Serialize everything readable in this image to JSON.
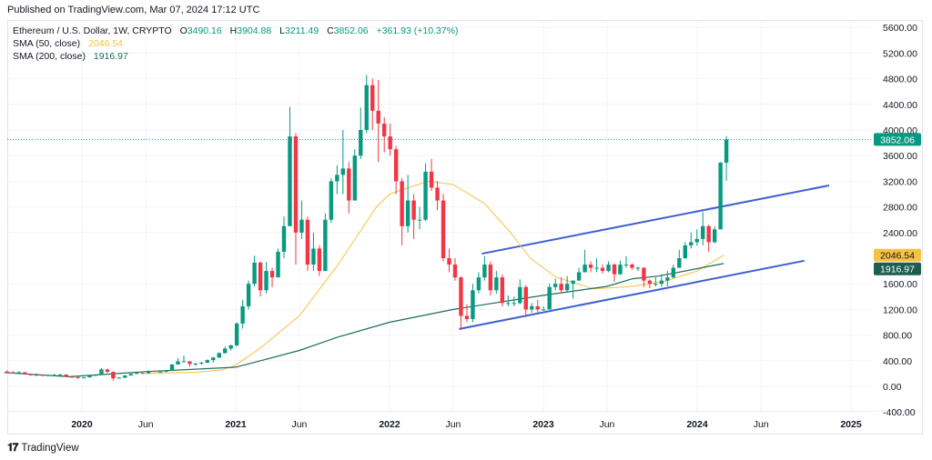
{
  "published": "Published on TradingView.com, Mar 07, 2024 17:12 UTC",
  "legend": {
    "symbol": "Ethereum / U.S. Dollar, 1W, CRYPTO",
    "open_label": "O",
    "open": "3490.16",
    "high_label": "H",
    "high": "3904.88",
    "low_label": "L",
    "low": "3211.49",
    "close_label": "C",
    "close": "3852.06",
    "change": "+361.93 (+10.37%)",
    "sma50_label": "SMA (50, close)",
    "sma50_value": "2046.54",
    "sma200_label": "SMA (200, close)",
    "sma200_value": "1916.97"
  },
  "logo": {
    "text": "TradingView"
  },
  "colors": {
    "up": "#089981",
    "down": "#f23645",
    "sma50": "#f5c242",
    "sma200": "#1e6b5a",
    "channel": "#3d5fd1",
    "grid": "#f0f3fa",
    "last_price": "#089981"
  },
  "chart_data": {
    "type": "candlestick",
    "title": "Ethereum / U.S. Dollar, 1W, CRYPTO",
    "ylim": [
      -400,
      5600
    ],
    "xlim": [
      "2019-07-01",
      "2025-03-10"
    ],
    "grid": true,
    "y_ticks": [
      "5600.00",
      "5200.00",
      "4800.00",
      "4400.00",
      "4000.00",
      "3600.00",
      "3200.00",
      "2800.00",
      "2400.00",
      "1600.00",
      "1200.00",
      "800.00",
      "400.00",
      "0.00",
      "-400.00"
    ],
    "x_ticks": [
      {
        "date": "2020-01-01",
        "label": "2020",
        "bold": true
      },
      {
        "date": "2020-06-01",
        "label": "Jun",
        "bold": false
      },
      {
        "date": "2021-01-01",
        "label": "2021",
        "bold": true
      },
      {
        "date": "2021-06-01",
        "label": "Jun",
        "bold": false
      },
      {
        "date": "2022-01-01",
        "label": "2022",
        "bold": true
      },
      {
        "date": "2022-06-01",
        "label": "Jun",
        "bold": false
      },
      {
        "date": "2023-01-01",
        "label": "2023",
        "bold": true
      },
      {
        "date": "2023-06-01",
        "label": "Jun",
        "bold": false
      },
      {
        "date": "2024-01-01",
        "label": "2024",
        "bold": true
      },
      {
        "date": "2024-06-01",
        "label": "Jun",
        "bold": false
      },
      {
        "date": "2025-01-01",
        "label": "2025",
        "bold": true
      }
    ],
    "price_tags": [
      {
        "value": 3852.06,
        "label": "3852.06",
        "color": "#089981",
        "text_color": "#ffffff"
      },
      {
        "value": 2046.54,
        "label": "2046.54",
        "color": "#f5c242",
        "text_color": "#131722"
      },
      {
        "value": 1916.97,
        "label": "1916.97",
        "color": "#1e5e4f",
        "text_color": "#ffffff"
      }
    ],
    "last_price": 3852.06,
    "candles": [
      [
        "2019-07-01",
        230,
        250,
        205,
        220
      ],
      [
        "2019-07-15",
        220,
        235,
        205,
        215
      ],
      [
        "2019-07-29",
        215,
        235,
        205,
        220
      ],
      [
        "2019-08-12",
        220,
        225,
        180,
        190
      ],
      [
        "2019-08-26",
        190,
        195,
        165,
        175
      ],
      [
        "2019-09-09",
        175,
        200,
        170,
        180
      ],
      [
        "2019-09-23",
        180,
        185,
        160,
        170
      ],
      [
        "2019-10-07",
        170,
        185,
        165,
        175
      ],
      [
        "2019-10-21",
        175,
        195,
        160,
        180
      ],
      [
        "2019-11-04",
        180,
        195,
        175,
        185
      ],
      [
        "2019-11-18",
        185,
        188,
        145,
        150
      ],
      [
        "2019-12-02",
        150,
        155,
        140,
        145
      ],
      [
        "2019-12-16",
        145,
        150,
        120,
        130
      ],
      [
        "2019-12-30",
        130,
        145,
        125,
        140
      ],
      [
        "2020-01-13",
        140,
        175,
        138,
        165
      ],
      [
        "2020-01-27",
        165,
        190,
        160,
        185
      ],
      [
        "2020-02-10",
        185,
        285,
        180,
        265
      ],
      [
        "2020-02-24",
        265,
        275,
        215,
        225
      ],
      [
        "2020-03-09",
        225,
        235,
        90,
        125
      ],
      [
        "2020-03-23",
        125,
        145,
        120,
        135
      ],
      [
        "2020-04-06",
        135,
        175,
        130,
        170
      ],
      [
        "2020-04-20",
        170,
        200,
        165,
        195
      ],
      [
        "2020-05-04",
        195,
        215,
        190,
        210
      ],
      [
        "2020-05-18",
        210,
        215,
        195,
        205
      ],
      [
        "2020-06-01",
        205,
        250,
        200,
        240
      ],
      [
        "2020-06-15",
        240,
        245,
        225,
        230
      ],
      [
        "2020-06-29",
        230,
        240,
        220,
        230
      ],
      [
        "2020-07-13",
        230,
        245,
        225,
        240
      ],
      [
        "2020-07-27",
        240,
        350,
        240,
        340
      ],
      [
        "2020-08-10",
        340,
        440,
        340,
        390
      ],
      [
        "2020-08-24",
        390,
        480,
        380,
        390
      ],
      [
        "2020-09-07",
        390,
        395,
        310,
        350
      ],
      [
        "2020-09-21",
        350,
        370,
        320,
        355
      ],
      [
        "2020-10-05",
        355,
        380,
        340,
        370
      ],
      [
        "2020-10-19",
        370,
        420,
        365,
        410
      ],
      [
        "2020-11-02",
        410,
        460,
        370,
        450
      ],
      [
        "2020-11-16",
        450,
        530,
        440,
        520
      ],
      [
        "2020-11-30",
        520,
        620,
        510,
        590
      ],
      [
        "2020-12-14",
        590,
        650,
        560,
        640
      ],
      [
        "2020-12-28",
        640,
        1000,
        620,
        980
      ],
      [
        "2021-01-11",
        980,
        1350,
        900,
        1250
      ],
      [
        "2021-01-25",
        1250,
        1650,
        1200,
        1600
      ],
      [
        "2021-02-08",
        1600,
        2040,
        1560,
        1930
      ],
      [
        "2021-02-22",
        1930,
        1950,
        1400,
        1500
      ],
      [
        "2021-03-08",
        1500,
        1940,
        1450,
        1800
      ],
      [
        "2021-03-22",
        1800,
        1850,
        1550,
        1700
      ],
      [
        "2021-04-05",
        1700,
        2150,
        1700,
        2100
      ],
      [
        "2021-04-19",
        2100,
        2650,
        2000,
        2500
      ],
      [
        "2021-05-03",
        2500,
        4360,
        2500,
        3900
      ],
      [
        "2021-05-17",
        3900,
        3950,
        1900,
        2400
      ],
      [
        "2021-05-31",
        2400,
        2900,
        2300,
        2600
      ],
      [
        "2021-06-14",
        2600,
        2650,
        1800,
        1900
      ],
      [
        "2021-06-28",
        1900,
        2400,
        1800,
        2150
      ],
      [
        "2021-07-12",
        2150,
        2200,
        1720,
        1800
      ],
      [
        "2021-07-26",
        1800,
        2700,
        1800,
        2600
      ],
      [
        "2021-08-09",
        2600,
        3250,
        2550,
        3200
      ],
      [
        "2021-08-23",
        3200,
        3450,
        3000,
        3300
      ],
      [
        "2021-09-06",
        3300,
        4000,
        3000,
        3400
      ],
      [
        "2021-09-20",
        3400,
        3500,
        2700,
        2900
      ],
      [
        "2021-10-04",
        2900,
        3700,
        2900,
        3600
      ],
      [
        "2021-10-18",
        3600,
        4350,
        3550,
        4000
      ],
      [
        "2021-11-01",
        4000,
        4860,
        3950,
        4700
      ],
      [
        "2021-11-15",
        4700,
        4800,
        4000,
        4300
      ],
      [
        "2021-11-29",
        4300,
        4780,
        3500,
        4100
      ],
      [
        "2021-12-13",
        4100,
        4200,
        3650,
        3900
      ],
      [
        "2021-12-27",
        3900,
        4100,
        3600,
        3700
      ],
      [
        "2022-01-10",
        3700,
        3750,
        3000,
        3200
      ],
      [
        "2022-01-24",
        3200,
        3250,
        2200,
        2500
      ],
      [
        "2022-02-07",
        2500,
        3300,
        2400,
        2900
      ],
      [
        "2022-02-21",
        2900,
        3000,
        2300,
        2600
      ],
      [
        "2022-03-07",
        2600,
        2800,
        2450,
        2600
      ],
      [
        "2022-03-21",
        2600,
        3480,
        2580,
        3350
      ],
      [
        "2022-04-04",
        3350,
        3550,
        3050,
        3100
      ],
      [
        "2022-04-18",
        3100,
        3200,
        2750,
        2900
      ],
      [
        "2022-05-02",
        2900,
        3000,
        1950,
        2000
      ],
      [
        "2022-05-16",
        2000,
        2150,
        1780,
        1900
      ],
      [
        "2022-05-30",
        1900,
        2000,
        1650,
        1700
      ],
      [
        "2022-06-13",
        1700,
        1720,
        880,
        1100
      ],
      [
        "2022-06-27",
        1100,
        1280,
        1000,
        1050
      ],
      [
        "2022-07-11",
        1050,
        1600,
        1000,
        1500
      ],
      [
        "2022-07-25",
        1500,
        1780,
        1450,
        1700
      ],
      [
        "2022-08-08",
        1700,
        2030,
        1650,
        1900
      ],
      [
        "2022-08-22",
        1900,
        1950,
        1420,
        1500
      ],
      [
        "2022-09-05",
        1500,
        1800,
        1450,
        1700
      ],
      [
        "2022-09-19",
        1700,
        1750,
        1250,
        1300
      ],
      [
        "2022-10-03",
        1300,
        1420,
        1250,
        1300
      ],
      [
        "2022-10-17",
        1300,
        1400,
        1250,
        1300
      ],
      [
        "2022-10-31",
        1300,
        1670,
        1280,
        1550
      ],
      [
        "2022-11-14",
        1550,
        1580,
        1080,
        1200
      ],
      [
        "2022-11-28",
        1200,
        1300,
        1150,
        1250
      ],
      [
        "2022-12-12",
        1250,
        1350,
        1150,
        1200
      ],
      [
        "2022-12-26",
        1200,
        1250,
        1180,
        1200
      ],
      [
        "2023-01-09",
        1200,
        1600,
        1200,
        1550
      ],
      [
        "2023-01-23",
        1550,
        1680,
        1500,
        1600
      ],
      [
        "2023-02-06",
        1600,
        1700,
        1450,
        1500
      ],
      [
        "2023-02-20",
        1500,
        1720,
        1480,
        1600
      ],
      [
        "2023-03-06",
        1600,
        1650,
        1370,
        1650
      ],
      [
        "2023-03-20",
        1650,
        1850,
        1650,
        1780
      ],
      [
        "2023-04-03",
        1780,
        2130,
        1780,
        1900
      ],
      [
        "2023-04-17",
        1900,
        1950,
        1780,
        1850
      ],
      [
        "2023-05-01",
        1850,
        2000,
        1780,
        1850
      ],
      [
        "2023-05-15",
        1850,
        1900,
        1760,
        1800
      ],
      [
        "2023-05-29",
        1800,
        1950,
        1780,
        1900
      ],
      [
        "2023-06-12",
        1900,
        1920,
        1630,
        1750
      ],
      [
        "2023-06-26",
        1750,
        1960,
        1740,
        1900
      ],
      [
        "2023-07-10",
        1900,
        2030,
        1850,
        1900
      ],
      [
        "2023-07-24",
        1900,
        1920,
        1820,
        1850
      ],
      [
        "2023-08-07",
        1850,
        1870,
        1800,
        1850
      ],
      [
        "2023-08-21",
        1850,
        1860,
        1550,
        1650
      ],
      [
        "2023-09-04",
        1650,
        1670,
        1530,
        1600
      ],
      [
        "2023-09-18",
        1600,
        1700,
        1560,
        1600
      ],
      [
        "2023-10-02",
        1600,
        1750,
        1550,
        1650
      ],
      [
        "2023-10-16",
        1650,
        1800,
        1560,
        1700
      ],
      [
        "2023-10-30",
        1700,
        1900,
        1690,
        1850
      ],
      [
        "2023-11-13",
        1850,
        2130,
        1850,
        2000
      ],
      [
        "2023-11-27",
        2000,
        2250,
        1990,
        2200
      ],
      [
        "2023-12-11",
        2200,
        2400,
        2150,
        2250
      ],
      [
        "2023-12-25",
        2250,
        2450,
        2200,
        2300
      ],
      [
        "2024-01-08",
        2300,
        2720,
        2200,
        2500
      ],
      [
        "2024-01-22",
        2500,
        2520,
        2100,
        2250
      ],
      [
        "2024-02-05",
        2250,
        2500,
        2230,
        2450
      ],
      [
        "2024-02-19",
        2450,
        3500,
        2450,
        3490.16
      ],
      [
        "2024-03-04",
        3490.16,
        3904.88,
        3211.49,
        3852.06
      ]
    ],
    "series": [
      {
        "name": "SMA (50, close)",
        "color": "#f5c242",
        "points": [
          [
            "2020-06-01",
            200
          ],
          [
            "2020-10-01",
            220
          ],
          [
            "2020-12-01",
            260
          ],
          [
            "2021-01-01",
            330
          ],
          [
            "2021-03-01",
            600
          ],
          [
            "2021-06-01",
            1100
          ],
          [
            "2021-09-01",
            1900
          ],
          [
            "2021-12-01",
            2800
          ],
          [
            "2022-01-01",
            3000
          ],
          [
            "2022-04-01",
            3200
          ],
          [
            "2022-06-01",
            3150
          ],
          [
            "2022-08-15",
            2850
          ],
          [
            "2022-10-15",
            2400
          ],
          [
            "2022-12-01",
            2000
          ],
          [
            "2023-02-01",
            1700
          ],
          [
            "2023-05-01",
            1520
          ],
          [
            "2023-08-01",
            1560
          ],
          [
            "2023-10-15",
            1640
          ],
          [
            "2024-01-01",
            1800
          ],
          [
            "2024-03-04",
            2046.54
          ]
        ]
      },
      {
        "name": "SMA (200, close)",
        "color": "#1e6b5a",
        "points": [
          [
            "2019-07-01",
            215
          ],
          [
            "2019-12-01",
            150
          ],
          [
            "2020-03-01",
            190
          ],
          [
            "2020-06-01",
            230
          ],
          [
            "2021-01-01",
            300
          ],
          [
            "2021-03-01",
            400
          ],
          [
            "2021-06-01",
            560
          ],
          [
            "2021-09-01",
            770
          ],
          [
            "2022-01-01",
            1000
          ],
          [
            "2022-06-01",
            1200
          ],
          [
            "2023-01-01",
            1420
          ],
          [
            "2023-06-01",
            1560
          ],
          [
            "2023-08-01",
            1680
          ],
          [
            "2023-10-01",
            1720
          ],
          [
            "2024-03-04",
            1916.97
          ]
        ]
      }
    ],
    "trendlines": [
      {
        "name": "channel-upper",
        "from": [
          "2022-08-08",
          2070
        ],
        "to": [
          "2024-11-10",
          3135
        ]
      },
      {
        "name": "channel-lower",
        "from": [
          "2022-06-15",
          895
        ],
        "to": [
          "2024-09-12",
          1960
        ]
      }
    ]
  }
}
